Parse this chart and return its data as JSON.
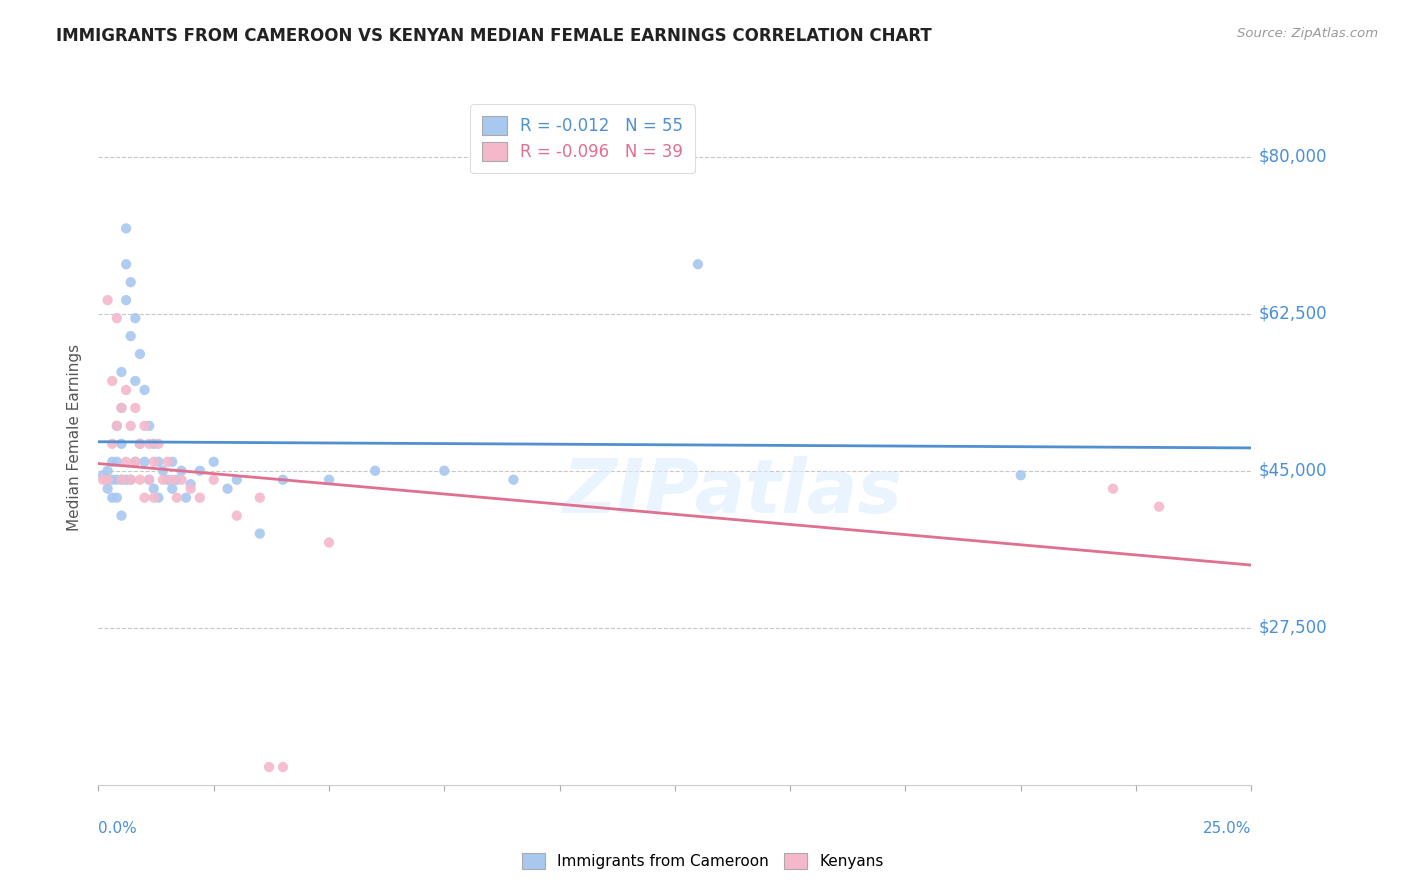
{
  "title": "IMMIGRANTS FROM CAMEROON VS KENYAN MEDIAN FEMALE EARNINGS CORRELATION CHART",
  "source": "Source: ZipAtlas.com",
  "ylabel": "Median Female Earnings",
  "xlim": [
    0.0,
    0.25
  ],
  "ylim": [
    10000,
    87500
  ],
  "yticks": [
    27500,
    45000,
    62500,
    80000
  ],
  "ytick_labels": [
    "$27,500",
    "$45,000",
    "$62,500",
    "$80,000"
  ],
  "legend1_r": "-0.012",
  "legend1_n": "55",
  "legend2_r": "-0.096",
  "legend2_n": "39",
  "legend1_label": "Immigrants from Cameroon",
  "legend2_label": "Kenyans",
  "blue_color": "#A8C8F0",
  "pink_color": "#F5B8CB",
  "blue_line_color": "#5090D0",
  "pink_line_color": "#E07090",
  "grid_color": "#C8C8C8",
  "axis_color": "#4A90D9",
  "title_color": "#222222",
  "watermark": "ZIPatlas",
  "blue_x": [
    0.001,
    0.002,
    0.002,
    0.003,
    0.003,
    0.003,
    0.004,
    0.004,
    0.004,
    0.004,
    0.005,
    0.005,
    0.005,
    0.005,
    0.005,
    0.006,
    0.006,
    0.006,
    0.006,
    0.007,
    0.007,
    0.007,
    0.008,
    0.008,
    0.008,
    0.009,
    0.009,
    0.01,
    0.01,
    0.011,
    0.011,
    0.012,
    0.012,
    0.013,
    0.013,
    0.014,
    0.015,
    0.016,
    0.016,
    0.017,
    0.018,
    0.019,
    0.02,
    0.022,
    0.025,
    0.028,
    0.03,
    0.035,
    0.04,
    0.05,
    0.06,
    0.075,
    0.09,
    0.13,
    0.2
  ],
  "blue_y": [
    44500,
    45000,
    43000,
    46000,
    44000,
    42000,
    50000,
    46000,
    44000,
    42000,
    56000,
    52000,
    48000,
    44000,
    40000,
    72000,
    68000,
    64000,
    44000,
    66000,
    60000,
    44000,
    62000,
    55000,
    46000,
    58000,
    48000,
    54000,
    46000,
    50000,
    44000,
    48000,
    43000,
    46000,
    42000,
    45000,
    44000,
    46000,
    43000,
    44000,
    45000,
    42000,
    43500,
    45000,
    46000,
    43000,
    44000,
    38000,
    44000,
    44000,
    45000,
    45000,
    44000,
    68000,
    44500
  ],
  "pink_x": [
    0.001,
    0.002,
    0.002,
    0.003,
    0.003,
    0.004,
    0.004,
    0.005,
    0.005,
    0.006,
    0.006,
    0.007,
    0.007,
    0.008,
    0.008,
    0.009,
    0.009,
    0.01,
    0.01,
    0.011,
    0.011,
    0.012,
    0.012,
    0.013,
    0.014,
    0.015,
    0.016,
    0.017,
    0.018,
    0.02,
    0.022,
    0.025,
    0.03,
    0.035,
    0.037,
    0.04,
    0.05,
    0.22,
    0.23
  ],
  "pink_y": [
    44000,
    64000,
    44000,
    55000,
    48000,
    62000,
    50000,
    52000,
    44000,
    54000,
    46000,
    50000,
    44000,
    52000,
    46000,
    48000,
    44000,
    50000,
    42000,
    48000,
    44000,
    46000,
    42000,
    48000,
    44000,
    46000,
    44000,
    42000,
    44000,
    43000,
    42000,
    44000,
    40000,
    42000,
    12000,
    12000,
    37000,
    43000,
    41000
  ]
}
